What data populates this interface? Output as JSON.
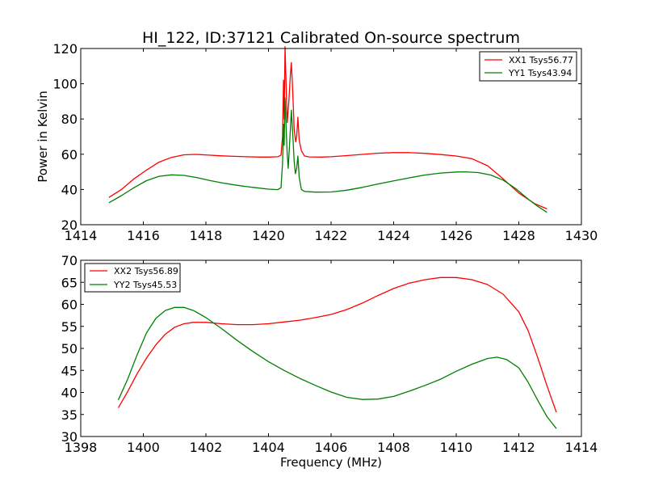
{
  "chart_data": [
    {
      "type": "line",
      "title": "HI_122, ID:37121 Calibrated On-source spectrum",
      "xlabel": "",
      "ylabel": "Power in Kelvin",
      "xlim": [
        1414,
        1430
      ],
      "ylim": [
        20,
        120
      ],
      "xticks": [
        1414,
        1416,
        1418,
        1420,
        1422,
        1424,
        1426,
        1428,
        1430
      ],
      "yticks": [
        20,
        40,
        60,
        80,
        100,
        120
      ],
      "legend_position": "top-right",
      "grid": false,
      "series": [
        {
          "name": "XX1 Tsys56.77",
          "color": "#ff0000",
          "points": [
            [
              1414.9,
              35.5
            ],
            [
              1415.3,
              40
            ],
            [
              1415.7,
              46
            ],
            [
              1416.1,
              51
            ],
            [
              1416.5,
              55.5
            ],
            [
              1416.9,
              58.2
            ],
            [
              1417.3,
              59.7
            ],
            [
              1417.7,
              59.9
            ],
            [
              1418.1,
              59.5
            ],
            [
              1418.5,
              59.1
            ],
            [
              1418.9,
              58.8
            ],
            [
              1419.3,
              58.6
            ],
            [
              1419.7,
              58.4
            ],
            [
              1420.0,
              58.4
            ],
            [
              1420.3,
              58.6
            ],
            [
              1420.4,
              59.5
            ],
            [
              1420.45,
              70
            ],
            [
              1420.48,
              102
            ],
            [
              1420.5,
              80
            ],
            [
              1420.53,
              121
            ],
            [
              1420.57,
              95
            ],
            [
              1420.6,
              78
            ],
            [
              1420.65,
              90
            ],
            [
              1420.7,
              105
            ],
            [
              1420.73,
              112
            ],
            [
              1420.77,
              98
            ],
            [
              1420.82,
              74
            ],
            [
              1420.87,
              67
            ],
            [
              1420.9,
              70
            ],
            [
              1420.94,
              81
            ],
            [
              1420.98,
              68
            ],
            [
              1421.05,
              62
            ],
            [
              1421.15,
              59
            ],
            [
              1421.3,
              58.5
            ],
            [
              1421.7,
              58.4
            ],
            [
              1422.0,
              58.6
            ],
            [
              1422.5,
              59.2
            ],
            [
              1423.0,
              59.9
            ],
            [
              1423.5,
              60.6
            ],
            [
              1424.0,
              60.9
            ],
            [
              1424.5,
              60.9
            ],
            [
              1425.0,
              60.5
            ],
            [
              1425.5,
              59.8
            ],
            [
              1426.0,
              59.0
            ],
            [
              1426.5,
              57.5
            ],
            [
              1427.0,
              53.5
            ],
            [
              1427.5,
              46
            ],
            [
              1428.0,
              38
            ],
            [
              1428.5,
              32
            ],
            [
              1428.9,
              29
            ]
          ]
        },
        {
          "name": "YY1 Tsys43.94",
          "color": "#008000",
          "points": [
            [
              1414.9,
              32.5
            ],
            [
              1415.3,
              36.5
            ],
            [
              1415.7,
              41
            ],
            [
              1416.1,
              45
            ],
            [
              1416.5,
              47.5
            ],
            [
              1416.9,
              48.3
            ],
            [
              1417.3,
              48
            ],
            [
              1417.7,
              46.8
            ],
            [
              1418.1,
              45.2
            ],
            [
              1418.5,
              43.8
            ],
            [
              1418.9,
              42.6
            ],
            [
              1419.3,
              41.6
            ],
            [
              1419.7,
              40.8
            ],
            [
              1420.0,
              40.2
            ],
            [
              1420.3,
              39.9
            ],
            [
              1420.4,
              41
            ],
            [
              1420.45,
              55
            ],
            [
              1420.48,
              77
            ],
            [
              1420.5,
              65
            ],
            [
              1420.53,
              92
            ],
            [
              1420.57,
              72
            ],
            [
              1420.6,
              60
            ],
            [
              1420.63,
              52
            ],
            [
              1420.68,
              68
            ],
            [
              1420.73,
              85
            ],
            [
              1420.78,
              70
            ],
            [
              1420.82,
              56
            ],
            [
              1420.86,
              49
            ],
            [
              1420.9,
              52
            ],
            [
              1420.94,
              59
            ],
            [
              1420.98,
              47
            ],
            [
              1421.05,
              40
            ],
            [
              1421.15,
              38.9
            ],
            [
              1421.5,
              38.5
            ],
            [
              1422.0,
              38.6
            ],
            [
              1422.5,
              39.6
            ],
            [
              1423.0,
              41.2
            ],
            [
              1423.5,
              43.1
            ],
            [
              1424.0,
              44.9
            ],
            [
              1424.5,
              46.6
            ],
            [
              1425.0,
              48.2
            ],
            [
              1425.5,
              49.3
            ],
            [
              1426.0,
              49.9
            ],
            [
              1426.3,
              50
            ],
            [
              1426.7,
              49.6
            ],
            [
              1427.1,
              48.2
            ],
            [
              1427.5,
              45.3
            ],
            [
              1427.9,
              40.5
            ],
            [
              1428.3,
              34.5
            ],
            [
              1428.6,
              30.5
            ],
            [
              1428.9,
              27
            ]
          ]
        }
      ]
    },
    {
      "type": "line",
      "title": "",
      "xlabel": "Frequency (MHz)",
      "ylabel": "",
      "xlim": [
        1398,
        1414
      ],
      "ylim": [
        30,
        70
      ],
      "xticks": [
        1398,
        1400,
        1402,
        1404,
        1406,
        1408,
        1410,
        1412,
        1414
      ],
      "yticks": [
        30,
        35,
        40,
        45,
        50,
        55,
        60,
        65,
        70
      ],
      "legend_position": "top-left",
      "grid": false,
      "series": [
        {
          "name": "XX2 Tsys56.89",
          "color": "#ff0000",
          "points": [
            [
              1399.2,
              36.5
            ],
            [
              1399.5,
              40.2
            ],
            [
              1399.8,
              44.2
            ],
            [
              1400.1,
              47.8
            ],
            [
              1400.4,
              50.8
            ],
            [
              1400.7,
              53.2
            ],
            [
              1401.0,
              54.8
            ],
            [
              1401.3,
              55.6
            ],
            [
              1401.6,
              55.9
            ],
            [
              1402.0,
              55.9
            ],
            [
              1402.5,
              55.6
            ],
            [
              1403.0,
              55.4
            ],
            [
              1403.5,
              55.4
            ],
            [
              1404.0,
              55.6
            ],
            [
              1404.5,
              56
            ],
            [
              1405.0,
              56.4
            ],
            [
              1405.5,
              57
            ],
            [
              1406.0,
              57.7
            ],
            [
              1406.5,
              58.8
            ],
            [
              1407.0,
              60.3
            ],
            [
              1407.5,
              62
            ],
            [
              1408.0,
              63.6
            ],
            [
              1408.5,
              64.8
            ],
            [
              1409.0,
              65.6
            ],
            [
              1409.5,
              66.1
            ],
            [
              1410.0,
              66.1
            ],
            [
              1410.5,
              65.6
            ],
            [
              1411.0,
              64.5
            ],
            [
              1411.5,
              62.3
            ],
            [
              1412.0,
              58.3
            ],
            [
              1412.3,
              54
            ],
            [
              1412.6,
              48
            ],
            [
              1412.9,
              41.5
            ],
            [
              1413.2,
              35.5
            ]
          ]
        },
        {
          "name": "YY2 Tsys45.53",
          "color": "#008000",
          "points": [
            [
              1399.2,
              38.3
            ],
            [
              1399.5,
              43
            ],
            [
              1399.8,
              48.5
            ],
            [
              1400.1,
              53.5
            ],
            [
              1400.4,
              56.8
            ],
            [
              1400.7,
              58.6
            ],
            [
              1401.0,
              59.3
            ],
            [
              1401.3,
              59.3
            ],
            [
              1401.6,
              58.6
            ],
            [
              1402.0,
              57
            ],
            [
              1402.5,
              54.5
            ],
            [
              1403.0,
              51.8
            ],
            [
              1403.5,
              49.3
            ],
            [
              1404.0,
              47
            ],
            [
              1404.5,
              45
            ],
            [
              1405.0,
              43.2
            ],
            [
              1405.5,
              41.6
            ],
            [
              1406.0,
              40.1
            ],
            [
              1406.5,
              38.9
            ],
            [
              1407.0,
              38.4
            ],
            [
              1407.5,
              38.5
            ],
            [
              1408.0,
              39.1
            ],
            [
              1408.5,
              40.3
            ],
            [
              1409.0,
              41.6
            ],
            [
              1409.5,
              43
            ],
            [
              1410.0,
              44.8
            ],
            [
              1410.5,
              46.4
            ],
            [
              1411.0,
              47.7
            ],
            [
              1411.3,
              48
            ],
            [
              1411.6,
              47.5
            ],
            [
              1412.0,
              45.6
            ],
            [
              1412.3,
              42.3
            ],
            [
              1412.6,
              38.3
            ],
            [
              1412.9,
              34.5
            ],
            [
              1413.2,
              31.8
            ]
          ]
        }
      ]
    }
  ]
}
